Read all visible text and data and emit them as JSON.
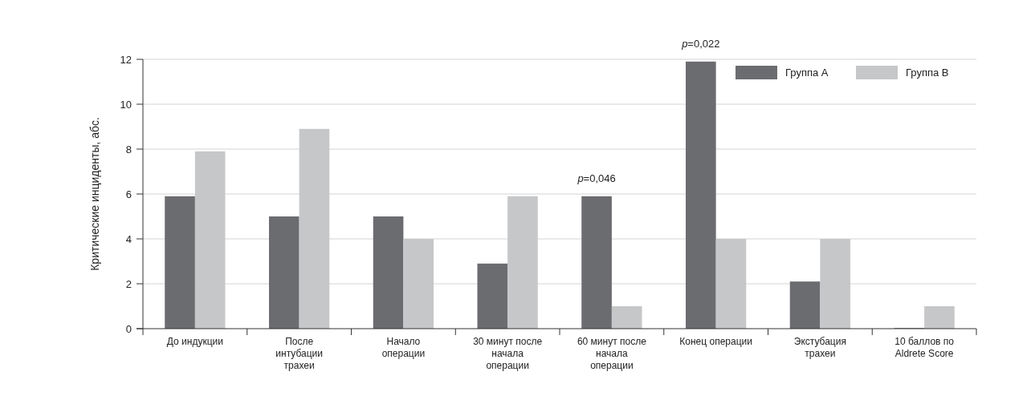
{
  "chart_data": {
    "type": "bar",
    "ylabel": "Критические инциденты, абс.",
    "categories": [
      "До индукции",
      "После интубации трахеи",
      "Начало операции",
      "30 минут после начала операции",
      "60 минут после начала операции",
      "Конец операции",
      "Экстубация трахеи",
      "10 баллов по Aldrete Score"
    ],
    "series": [
      {
        "name": "Группа А",
        "color": "#6b6c70",
        "values": [
          5.9,
          5,
          5,
          2.9,
          5.9,
          11.9,
          2.1,
          0
        ]
      },
      {
        "name": "Группа В",
        "color": "#c6c7c9",
        "values": [
          7.9,
          8.9,
          4,
          5.9,
          1,
          4,
          4,
          1
        ]
      }
    ],
    "ylim": [
      0,
      12
    ],
    "yticks": [
      0,
      2,
      4,
      6,
      8,
      10,
      12
    ],
    "grid": "y",
    "legend": "top right",
    "annotations": [
      {
        "text": "p=0,046",
        "x": "60 минут после начала операции",
        "y": 5.9
      },
      {
        "text": "p=0,022",
        "x": "Конец операции",
        "y": 11.9
      }
    ]
  }
}
